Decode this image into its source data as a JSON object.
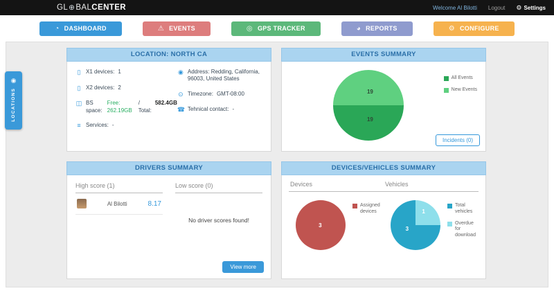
{
  "topbar": {
    "brand_gl": "GL",
    "brand_bal": "BAL",
    "brand_center": "CENTER",
    "welcome": "Welcome Al Bilotti",
    "logout": "Logout",
    "settings": "Settings"
  },
  "nav": {
    "dashboard": "DASHBOARD",
    "events": "EVENTS",
    "gps": "GPS TRACKER",
    "reports": "REPORTS",
    "configure": "CONFIGURE"
  },
  "colors": {
    "nav_dashboard": "#3a99d9",
    "nav_events": "#dd7d7d",
    "nav_gps": "#5cb87a",
    "nav_reports": "#8f9bce",
    "nav_configure": "#f6b24e",
    "panel_header_bg": "#aad4f0",
    "accent_blue": "#3498db",
    "pie_green_dark": "#2aa757",
    "pie_green_light": "#5fd080",
    "pie_red": "#c05450",
    "pie_blue": "#28a5c8",
    "pie_cyan": "#8edfeb"
  },
  "locations_tab": {
    "label": "LOCATIONS"
  },
  "location_panel": {
    "title": "LOCATION: NORTH CA",
    "x1_label": "X1 devices:",
    "x1_value": "1",
    "x2_label": "X2 devices:",
    "x2_value": "2",
    "bs_label": "BS space:",
    "bs_free": "Free: 262.19GB",
    "bs_total_sep": "/ Total:",
    "bs_total": "582.4GB",
    "services_label": "Services:",
    "services_value": "-",
    "address_label": "Address:",
    "address_value": "Redding, California, 96003, United States",
    "timezone_label": "Timezone:",
    "timezone_value": "GMT-08:00",
    "contact_label": "Tehnical contact:",
    "contact_value": "-"
  },
  "events_panel": {
    "title": "EVENTS SUMMARY",
    "top_value": "19",
    "bottom_value": "19",
    "legend_all": "All Events",
    "legend_new": "New Events",
    "incidents_button": "Incidents (0)"
  },
  "drivers_panel": {
    "title": "DRIVERS SUMMARY",
    "high_header": "High score (1)",
    "low_header": "Low score (0)",
    "driver_name": "Al Bilotti",
    "driver_score": "8.17",
    "empty_text": "No driver scores found!",
    "view_more": "View more"
  },
  "devices_panel": {
    "title": "DEVICES/VEHICLES SUMMARY",
    "devices_header": "Devices",
    "vehicles_header": "Vehicles",
    "devices_value": "3",
    "vehicles_value": "3",
    "overdue_value": "1",
    "legend_assigned": "Assigned devices",
    "legend_total": "Total vehicles",
    "legend_overdue": "Overdue for download"
  },
  "chart_data": [
    {
      "type": "pie",
      "title": "EVENTS SUMMARY",
      "labels": [
        "All Events",
        "New Events"
      ],
      "values": [
        19,
        19
      ],
      "colors": [
        "#2aa757",
        "#5fd080"
      ],
      "legend_position": "right"
    },
    {
      "type": "pie",
      "title": "Devices",
      "labels": [
        "Assigned devices"
      ],
      "values": [
        3
      ],
      "colors": [
        "#c05450"
      ],
      "legend_position": "right"
    },
    {
      "type": "pie",
      "title": "Vehicles",
      "labels": [
        "Total vehicles",
        "Overdue for download"
      ],
      "values": [
        3,
        1
      ],
      "colors": [
        "#28a5c8",
        "#8edfeb"
      ],
      "legend_position": "right"
    }
  ]
}
